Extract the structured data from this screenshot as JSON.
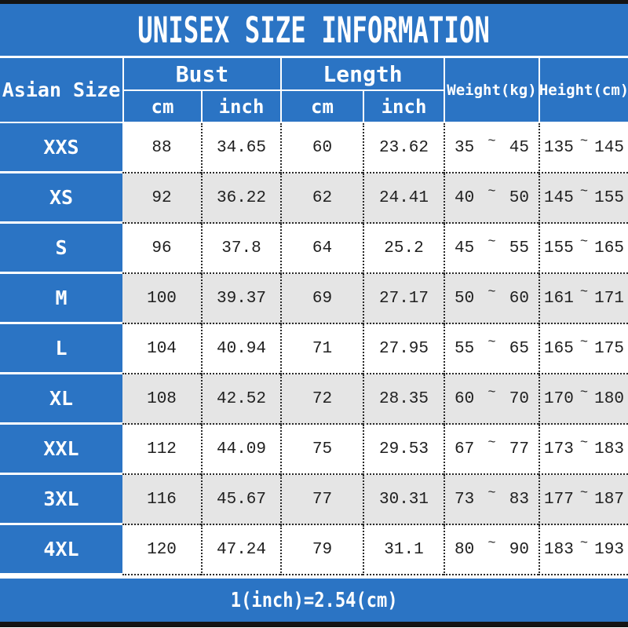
{
  "title": "UNISEX SIZE INFORMATION",
  "header": {
    "corner": "Asian Size",
    "bust": "Bust",
    "length": "Length",
    "cm": "cm",
    "inch": "inch",
    "weight": "Weight(kg)",
    "height": "Height(cm)"
  },
  "ui": {
    "tilde": "~"
  },
  "footnote": "1(inch)=2.54(cm)",
  "colors": {
    "accent_blue": "#2b74c4",
    "alt_row_gray": "#e5e5e5",
    "bar_black": "#141414",
    "text_dark": "#1f1f1f",
    "header_text": "#ffffff"
  },
  "chart_data": {
    "type": "table",
    "title": "UNISEX SIZE INFORMATION",
    "column_groups": [
      {
        "label": "Bust",
        "columns": [
          "cm",
          "inch"
        ]
      },
      {
        "label": "Length",
        "columns": [
          "cm",
          "inch"
        ]
      }
    ],
    "columns": [
      "Asian Size",
      "Bust cm",
      "Bust inch",
      "Length cm",
      "Length inch",
      "Weight min (kg)",
      "Weight max (kg)",
      "Height min (cm)",
      "Height max (cm)"
    ],
    "rows": [
      [
        "XXS",
        "88",
        "34.65",
        "60",
        "23.62",
        "35",
        "45",
        "135",
        "145"
      ],
      [
        "XS",
        "92",
        "36.22",
        "62",
        "24.41",
        "40",
        "50",
        "145",
        "155"
      ],
      [
        "S",
        "96",
        "37.8",
        "64",
        "25.2",
        "45",
        "55",
        "155",
        "165"
      ],
      [
        "M",
        "100",
        "39.37",
        "69",
        "27.17",
        "50",
        "60",
        "161",
        "171"
      ],
      [
        "L",
        "104",
        "40.94",
        "71",
        "27.95",
        "55",
        "65",
        "165",
        "175"
      ],
      [
        "XL",
        "108",
        "42.52",
        "72",
        "28.35",
        "60",
        "70",
        "170",
        "180"
      ],
      [
        "XXL",
        "112",
        "44.09",
        "75",
        "29.53",
        "67",
        "77",
        "173",
        "183"
      ],
      [
        "3XL",
        "116",
        "45.67",
        "77",
        "30.31",
        "73",
        "83",
        "177",
        "187"
      ],
      [
        "4XL",
        "120",
        "47.24",
        "79",
        "31.1",
        "80",
        "90",
        "183",
        "193"
      ]
    ],
    "footnote": "1(inch)=2.54(cm)",
    "layout": {
      "row_striping": "white/gray alternating",
      "first_column_style": "blue header column"
    }
  }
}
